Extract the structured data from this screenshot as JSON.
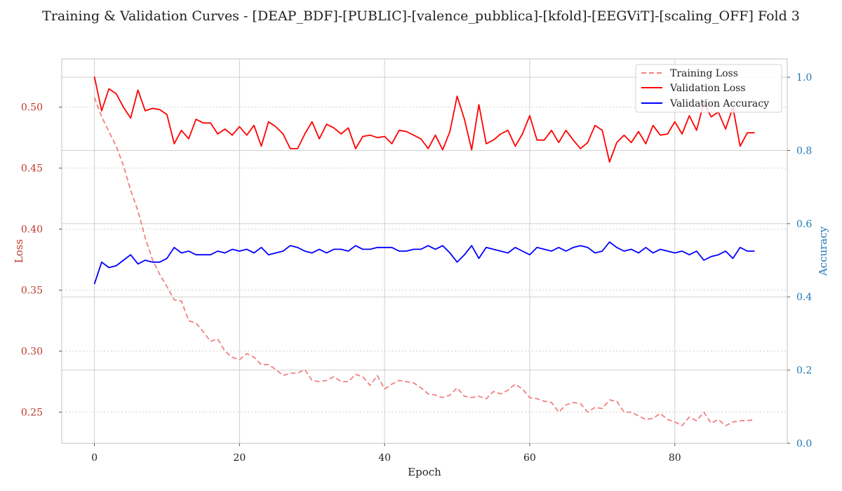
{
  "chart_data": {
    "type": "line",
    "title": "Training & Validation Curves - [DEAP_BDF]-[PUBLIC]-[valence_pubblica]-[kfold]-[EEGViT]-[scaling_OFF] Fold 3",
    "xlabel": "Epoch",
    "ylabel_left": "Loss",
    "ylabel_right": "Accuracy",
    "xlim": [
      -4.5,
      95.5
    ],
    "ylim_left": [
      0.2245,
      0.5395
    ],
    "ylim_right": [
      0.0,
      1.05
    ],
    "x_ticks": [
      0,
      20,
      40,
      60,
      80
    ],
    "y_ticks_left": [
      0.25,
      0.3,
      0.35,
      0.4,
      0.45,
      0.5
    ],
    "y_ticks_right": [
      0.0,
      0.2,
      0.4,
      0.6,
      0.8,
      1.0
    ],
    "x_tick_labels": [
      "0",
      "20",
      "40",
      "60",
      "80"
    ],
    "y_tick_labels_left": [
      "0.25",
      "0.30",
      "0.35",
      "0.40",
      "0.45",
      "0.50"
    ],
    "y_tick_labels_right": [
      "0.0",
      "0.2",
      "0.4",
      "0.6",
      "0.8",
      "1.0"
    ],
    "grid": true,
    "legend_position": "top-right",
    "colors": {
      "training_loss": "#f08080",
      "validation_loss": "#ff0000",
      "validation_accuracy": "#0000ff",
      "left_axis": "#c0392b",
      "right_axis": "#1f77b4",
      "grid": "#cfcfcf",
      "spine": "#cccccc"
    },
    "x": [
      0,
      1,
      2,
      3,
      4,
      5,
      6,
      7,
      8,
      9,
      10,
      11,
      12,
      13,
      14,
      15,
      16,
      17,
      18,
      19,
      20,
      21,
      22,
      23,
      24,
      25,
      26,
      27,
      28,
      29,
      30,
      31,
      32,
      33,
      34,
      35,
      36,
      37,
      38,
      39,
      40,
      41,
      42,
      43,
      44,
      45,
      46,
      47,
      48,
      49,
      50,
      51,
      52,
      53,
      54,
      55,
      56,
      57,
      58,
      59,
      60,
      61,
      62,
      63,
      64,
      65,
      66,
      67,
      68,
      69,
      70,
      71,
      72,
      73,
      74,
      75,
      76,
      77,
      78,
      79,
      80,
      81,
      82,
      83,
      84,
      85,
      86,
      87,
      88,
      89,
      90,
      91
    ],
    "series": [
      {
        "name": "Training Loss",
        "axis": "left",
        "style": "dashed",
        "values": [
          0.508,
          0.492,
          0.48,
          0.468,
          0.452,
          0.432,
          0.415,
          0.393,
          0.375,
          0.363,
          0.353,
          0.342,
          0.341,
          0.325,
          0.323,
          0.316,
          0.308,
          0.31,
          0.3,
          0.295,
          0.293,
          0.298,
          0.295,
          0.289,
          0.289,
          0.285,
          0.28,
          0.282,
          0.282,
          0.285,
          0.276,
          0.275,
          0.276,
          0.279,
          0.275,
          0.275,
          0.281,
          0.279,
          0.272,
          0.28,
          0.269,
          0.273,
          0.276,
          0.275,
          0.274,
          0.27,
          0.265,
          0.264,
          0.262,
          0.264,
          0.27,
          0.263,
          0.262,
          0.263,
          0.261,
          0.267,
          0.265,
          0.268,
          0.273,
          0.269,
          0.262,
          0.261,
          0.259,
          0.258,
          0.25,
          0.256,
          0.258,
          0.257,
          0.25,
          0.254,
          0.253,
          0.26,
          0.259,
          0.25,
          0.25,
          0.247,
          0.244,
          0.245,
          0.249,
          0.244,
          0.242,
          0.239,
          0.246,
          0.243,
          0.25,
          0.241,
          0.244,
          0.239,
          0.242,
          0.243,
          0.243,
          0.244
        ]
      },
      {
        "name": "Validation Loss",
        "axis": "left",
        "style": "solid",
        "values": [
          0.525,
          0.497,
          0.515,
          0.511,
          0.5,
          0.491,
          0.514,
          0.497,
          0.499,
          0.498,
          0.494,
          0.47,
          0.481,
          0.474,
          0.49,
          0.487,
          0.487,
          0.478,
          0.482,
          0.477,
          0.484,
          0.477,
          0.485,
          0.468,
          0.488,
          0.484,
          0.478,
          0.466,
          0.466,
          0.478,
          0.488,
          0.474,
          0.486,
          0.483,
          0.478,
          0.483,
          0.466,
          0.476,
          0.477,
          0.475,
          0.476,
          0.47,
          0.481,
          0.48,
          0.477,
          0.474,
          0.466,
          0.477,
          0.465,
          0.48,
          0.509,
          0.49,
          0.465,
          0.502,
          0.47,
          0.473,
          0.478,
          0.481,
          0.468,
          0.478,
          0.493,
          0.473,
          0.473,
          0.481,
          0.471,
          0.481,
          0.473,
          0.466,
          0.471,
          0.485,
          0.481,
          0.455,
          0.471,
          0.477,
          0.471,
          0.48,
          0.47,
          0.485,
          0.477,
          0.478,
          0.488,
          0.478,
          0.493,
          0.481,
          0.504,
          0.492,
          0.496,
          0.482,
          0.5,
          0.468,
          0.479,
          0.479
        ]
      },
      {
        "name": "Validation Accuracy",
        "axis": "right",
        "style": "solid",
        "values": [
          0.435,
          0.495,
          0.48,
          0.485,
          0.5,
          0.515,
          0.49,
          0.5,
          0.495,
          0.495,
          0.505,
          0.535,
          0.52,
          0.525,
          0.515,
          0.515,
          0.515,
          0.525,
          0.52,
          0.53,
          0.525,
          0.53,
          0.52,
          0.535,
          0.515,
          0.52,
          0.525,
          0.54,
          0.535,
          0.525,
          0.52,
          0.53,
          0.52,
          0.53,
          0.53,
          0.525,
          0.54,
          0.53,
          0.53,
          0.535,
          0.535,
          0.535,
          0.525,
          0.525,
          0.53,
          0.53,
          0.54,
          0.53,
          0.54,
          0.52,
          0.495,
          0.515,
          0.54,
          0.505,
          0.535,
          0.53,
          0.525,
          0.52,
          0.535,
          0.525,
          0.515,
          0.535,
          0.53,
          0.525,
          0.535,
          0.525,
          0.535,
          0.54,
          0.535,
          0.52,
          0.525,
          0.55,
          0.535,
          0.525,
          0.53,
          0.52,
          0.535,
          0.52,
          0.53,
          0.525,
          0.52,
          0.525,
          0.515,
          0.525,
          0.5,
          0.51,
          0.515,
          0.525,
          0.505,
          0.535,
          0.525,
          0.525
        ]
      }
    ]
  }
}
